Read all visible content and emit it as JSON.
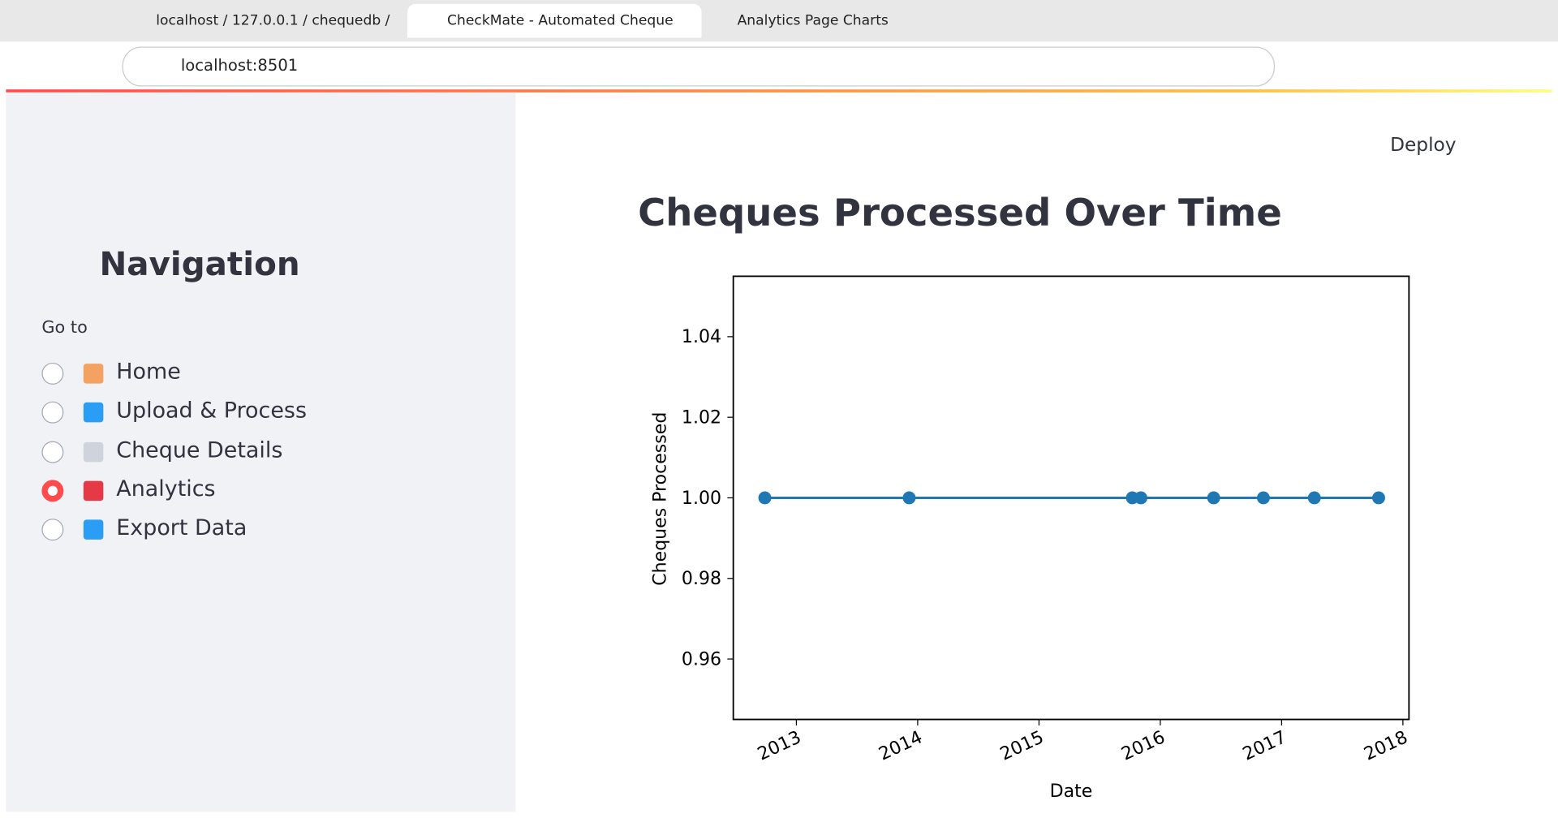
{
  "browser": {
    "tabs": [
      "localhost / 127.0.0.1 / chequedb /",
      "CheckMate - Automated Cheque",
      "Analytics Page Charts"
    ],
    "address": "localhost:8501"
  },
  "app": {
    "deploy": "Deploy"
  },
  "sidebar": {
    "title": "Navigation",
    "label": "Go to",
    "options": [
      "Home",
      "Upload & Process",
      "Cheque Details",
      "Analytics",
      "Export Data"
    ],
    "selected": 3
  },
  "chart_data": {
    "type": "line",
    "title": "Cheques Processed Over Time",
    "x_label": "Date",
    "y_label": "Cheques Processed",
    "x": [
      2012.74,
      2013.93,
      2015.77,
      2015.84,
      2016.44,
      2016.85,
      2017.27,
      2017.8
    ],
    "values": [
      1,
      1,
      1,
      1,
      1,
      1,
      1,
      1
    ],
    "color": "#1f77b4",
    "xlim": [
      2012.48,
      2018.05
    ],
    "xticks": [
      2013,
      2014,
      2015,
      2016,
      2017,
      2018
    ],
    "ylim": [
      0.945,
      1.055
    ],
    "yticks": [
      0.96,
      0.98,
      {
        "value": 1,
        "label": "1.00"
      },
      1.02,
      1.04
    ]
  }
}
